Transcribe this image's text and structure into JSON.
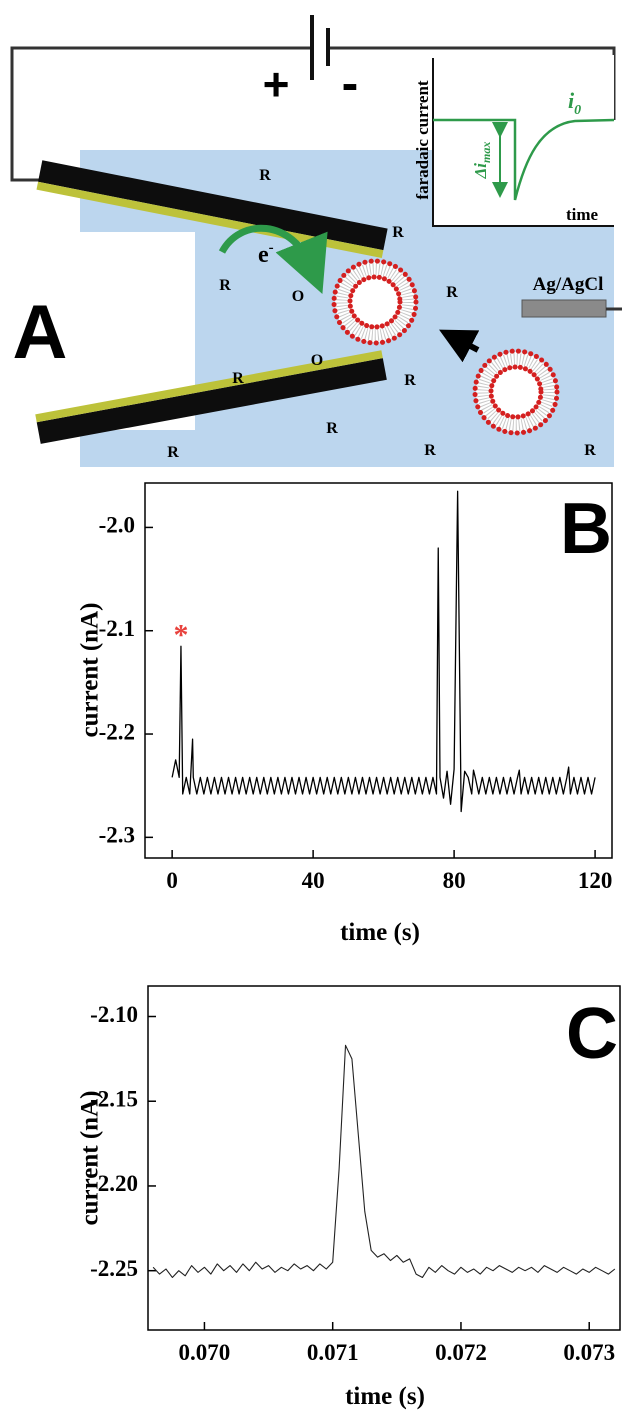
{
  "diagram": {
    "panel_label": "A",
    "battery": {
      "plus": "+",
      "minus": "-"
    },
    "inset": {
      "y_label": "faradaic current",
      "x_label": "time",
      "baseline_label": {
        "text": "i",
        "sub": "0"
      },
      "drop_label": {
        "text": "Δi",
        "sub": "max"
      }
    },
    "electron": {
      "text": "e",
      "sup": "-"
    },
    "reference_electrode": "Ag/AgCl",
    "species": [
      "R",
      "R",
      "R",
      "R",
      "R",
      "R",
      "R",
      "R",
      "R",
      "R",
      "O",
      "O"
    ]
  },
  "chart_data": [
    {
      "type": "line",
      "label": "B",
      "x_label": "time (s)",
      "y_label": "current (nA)",
      "xlim": [
        -7.7,
        124.8
      ],
      "ylim": [
        -2.32,
        -1.957
      ],
      "xticks": [
        0,
        40,
        80,
        120
      ],
      "yticks": [
        {
          "value": -2,
          "label": "-2.0"
        },
        -2.1,
        -2.2,
        -2.3
      ],
      "x": [
        0,
        1,
        2,
        2.5,
        3,
        4,
        5,
        5.8,
        6,
        7,
        8,
        9,
        10,
        11,
        12,
        13,
        14,
        15,
        16,
        17,
        18,
        19,
        20,
        21,
        22,
        23,
        24,
        25,
        26,
        27,
        28,
        29,
        30,
        31,
        32,
        33,
        34,
        35,
        36,
        37,
        38,
        39,
        40,
        41,
        42,
        43,
        44,
        45,
        46,
        47,
        48,
        49,
        50,
        51,
        52,
        53,
        54,
        55,
        56,
        57,
        58,
        59,
        60,
        61,
        62,
        63,
        64,
        65,
        66,
        67,
        68,
        69,
        70,
        71,
        72,
        73,
        74,
        75,
        75.5,
        76,
        77,
        78,
        79,
        80,
        81,
        82,
        83,
        84,
        85,
        85.5,
        86,
        87,
        88,
        89,
        90,
        91,
        92,
        93,
        94,
        95,
        96,
        97,
        98,
        98.5,
        99,
        100,
        101,
        102,
        103,
        104,
        105,
        106,
        107,
        108,
        109,
        110,
        111,
        112,
        112.5,
        113,
        114,
        115,
        116,
        117,
        118,
        119,
        120
      ],
      "series": [
        {
          "color": "#000000",
          "values": [
            -2.242,
            -2.225,
            -2.242,
            -2.115,
            -2.258,
            -2.242,
            -2.258,
            -2.205,
            -2.242,
            -2.258,
            -2.242,
            -2.258,
            -2.242,
            -2.258,
            -2.242,
            -2.258,
            -2.242,
            -2.258,
            -2.242,
            -2.258,
            -2.242,
            -2.258,
            -2.242,
            -2.258,
            -2.242,
            -2.258,
            -2.242,
            -2.258,
            -2.242,
            -2.258,
            -2.242,
            -2.258,
            -2.242,
            -2.258,
            -2.242,
            -2.258,
            -2.242,
            -2.258,
            -2.242,
            -2.258,
            -2.242,
            -2.258,
            -2.242,
            -2.258,
            -2.242,
            -2.258,
            -2.242,
            -2.258,
            -2.242,
            -2.258,
            -2.242,
            -2.258,
            -2.242,
            -2.258,
            -2.242,
            -2.258,
            -2.242,
            -2.258,
            -2.242,
            -2.258,
            -2.242,
            -2.258,
            -2.242,
            -2.258,
            -2.242,
            -2.258,
            -2.242,
            -2.258,
            -2.242,
            -2.258,
            -2.242,
            -2.258,
            -2.242,
            -2.258,
            -2.242,
            -2.258,
            -2.242,
            -2.258,
            -2.02,
            -2.242,
            -2.262,
            -2.236,
            -2.268,
            -2.234,
            -1.965,
            -2.275,
            -2.236,
            -2.242,
            -2.258,
            -2.235,
            -2.242,
            -2.258,
            -2.242,
            -2.258,
            -2.242,
            -2.258,
            -2.242,
            -2.258,
            -2.242,
            -2.258,
            -2.242,
            -2.258,
            -2.242,
            -2.235,
            -2.258,
            -2.242,
            -2.258,
            -2.242,
            -2.258,
            -2.242,
            -2.258,
            -2.242,
            -2.258,
            -2.242,
            -2.258,
            -2.242,
            -2.258,
            -2.242,
            -2.232,
            -2.258,
            -2.242,
            -2.258,
            -2.242,
            -2.258,
            -2.242,
            -2.258,
            -2.242
          ]
        }
      ],
      "annotations": [
        {
          "text": "*",
          "x": 2.5,
          "y": -2.1,
          "color": "#e8413c"
        }
      ]
    },
    {
      "type": "line",
      "label": "C",
      "x_label": "time (s)",
      "y_label": "current (nA)",
      "xlim": [
        0.06956,
        0.07324
      ],
      "ylim": [
        -2.285,
        -2.082
      ],
      "xticks": [
        {
          "value": 0.07,
          "label": "0.070"
        },
        {
          "value": 0.071,
          "label": "0.071"
        },
        {
          "value": 0.072,
          "label": "0.072"
        },
        {
          "value": 0.073,
          "label": "0.073"
        }
      ],
      "yticks": [
        {
          "value": -2.1,
          "label": "-2.10"
        },
        -2.15,
        {
          "value": -2.2,
          "label": "-2.20"
        },
        -2.25
      ],
      "x": [
        0.0696,
        0.06965,
        0.0697,
        0.06975,
        0.0698,
        0.06985,
        0.0699,
        0.06995,
        0.07,
        0.07005,
        0.0701,
        0.07015,
        0.0702,
        0.07025,
        0.0703,
        0.07035,
        0.0704,
        0.07045,
        0.0705,
        0.07055,
        0.0706,
        0.07065,
        0.0707,
        0.07075,
        0.0708,
        0.07085,
        0.0709,
        0.07095,
        0.071,
        0.07105,
        0.0711,
        0.07115,
        0.0712,
        0.07125,
        0.0713,
        0.07135,
        0.0714,
        0.07145,
        0.0715,
        0.07155,
        0.0716,
        0.07165,
        0.0717,
        0.07175,
        0.0718,
        0.07185,
        0.0719,
        0.07195,
        0.072,
        0.07205,
        0.0721,
        0.07215,
        0.0722,
        0.07225,
        0.0723,
        0.07235,
        0.0724,
        0.07245,
        0.0725,
        0.07255,
        0.0726,
        0.07265,
        0.0727,
        0.07275,
        0.0728,
        0.07285,
        0.0729,
        0.07295,
        0.073,
        0.07305,
        0.0731,
        0.07315,
        0.0732
      ],
      "series": [
        {
          "color": "#222222",
          "values": [
            -2.248,
            -2.252,
            -2.249,
            -2.254,
            -2.25,
            -2.253,
            -2.247,
            -2.251,
            -2.248,
            -2.252,
            -2.246,
            -2.25,
            -2.247,
            -2.251,
            -2.246,
            -2.25,
            -2.245,
            -2.249,
            -2.247,
            -2.251,
            -2.248,
            -2.25,
            -2.246,
            -2.249,
            -2.247,
            -2.25,
            -2.246,
            -2.249,
            -2.245,
            -2.19,
            -2.117,
            -2.125,
            -2.17,
            -2.215,
            -2.238,
            -2.242,
            -2.24,
            -2.244,
            -2.241,
            -2.245,
            -2.243,
            -2.252,
            -2.254,
            -2.248,
            -2.251,
            -2.247,
            -2.25,
            -2.252,
            -2.248,
            -2.251,
            -2.249,
            -2.252,
            -2.248,
            -2.25,
            -2.247,
            -2.249,
            -2.251,
            -2.248,
            -2.25,
            -2.248,
            -2.251,
            -2.247,
            -2.249,
            -2.251,
            -2.248,
            -2.25,
            -2.252,
            -2.249,
            -2.251,
            -2.248,
            -2.25,
            -2.252,
            -2.249
          ]
        }
      ]
    }
  ]
}
